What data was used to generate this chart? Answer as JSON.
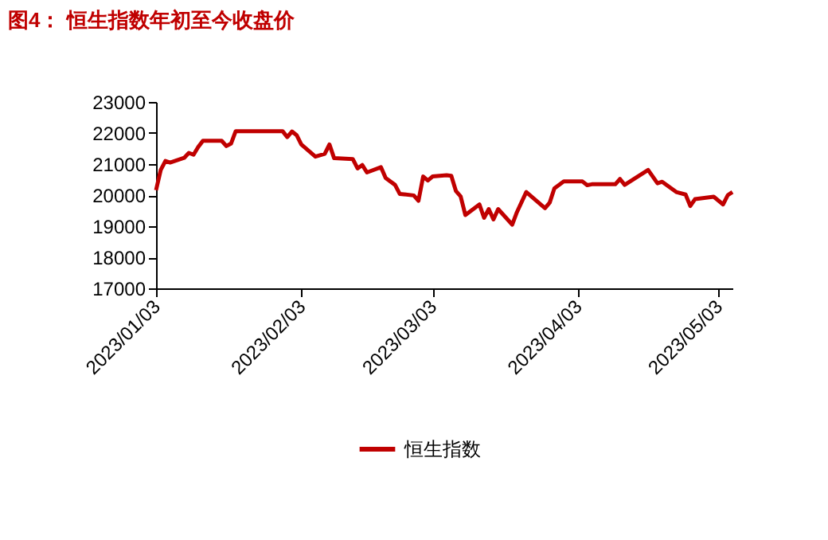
{
  "chart_data": {
    "type": "line",
    "title": "图4：  恒生指数年初至今收盘价",
    "x": [
      "2023-01-03",
      "2023-01-04",
      "2023-01-05",
      "2023-01-06",
      "2023-01-09",
      "2023-01-10",
      "2023-01-11",
      "2023-01-12",
      "2023-01-13",
      "2023-01-16",
      "2023-01-17",
      "2023-01-18",
      "2023-01-19",
      "2023-01-20",
      "2023-01-30",
      "2023-01-31",
      "2023-02-01",
      "2023-02-02",
      "2023-02-03",
      "2023-02-06",
      "2023-02-08",
      "2023-02-09",
      "2023-02-10",
      "2023-02-14",
      "2023-02-15",
      "2023-02-16",
      "2023-02-17",
      "2023-02-20",
      "2023-02-21",
      "2023-02-23",
      "2023-02-24",
      "2023-02-27",
      "2023-02-28",
      "2023-03-01",
      "2023-03-02",
      "2023-03-03",
      "2023-03-06",
      "2023-03-07",
      "2023-03-08",
      "2023-03-09",
      "2023-03-10",
      "2023-03-13",
      "2023-03-14",
      "2023-03-15",
      "2023-03-16",
      "2023-03-17",
      "2023-03-20",
      "2023-03-21",
      "2023-03-23",
      "2023-03-27",
      "2023-03-28",
      "2023-03-29",
      "2023-03-31",
      "2023-04-04",
      "2023-04-05",
      "2023-04-06",
      "2023-04-11",
      "2023-04-12",
      "2023-04-13",
      "2023-04-18",
      "2023-04-20",
      "2023-04-21",
      "2023-04-24",
      "2023-04-26",
      "2023-04-27",
      "2023-04-28",
      "2023-05-02",
      "2023-05-04",
      "2023-05-05",
      "2023-05-06"
    ],
    "series": [
      {
        "name": "恒生指数",
        "color": "#c00000",
        "values": [
          20160,
          20810,
          21100,
          21050,
          21200,
          21360,
          21300,
          21550,
          21750,
          21750,
          21750,
          21580,
          21660,
          22060,
          22060,
          21870,
          22050,
          21930,
          21630,
          21240,
          21330,
          21630,
          21190,
          21160,
          20860,
          20970,
          20730,
          20900,
          20550,
          20330,
          20040,
          19990,
          19820,
          20600,
          20470,
          20600,
          20640,
          20620,
          20130,
          19960,
          19360,
          19700,
          19270,
          19550,
          19220,
          19550,
          19050,
          19450,
          20100,
          19580,
          19760,
          20220,
          20440,
          20440,
          20320,
          20350,
          20350,
          20520,
          20330,
          20810,
          20380,
          20430,
          20100,
          20020,
          19650,
          19870,
          19950,
          19700,
          20000,
          20100
        ]
      }
    ],
    "xlim": [
      "2023-01-03",
      "2023-05-06"
    ],
    "xticks": [
      {
        "value": "2023-01-03",
        "label": "2023/01/03"
      },
      {
        "value": "2023-02-03",
        "label": "2023/02/03"
      },
      {
        "value": "2023-03-03",
        "label": "2023/03/03"
      },
      {
        "value": "2023-04-03",
        "label": "2023/04/03"
      },
      {
        "value": "2023-05-03",
        "label": "2023/05/03"
      }
    ],
    "ylim": [
      17000,
      23000
    ],
    "yticks": [
      17000,
      18000,
      19000,
      20000,
      21000,
      22000,
      23000
    ],
    "grid": false,
    "legend": "bottom",
    "marker": "none",
    "line_style": "solid"
  }
}
